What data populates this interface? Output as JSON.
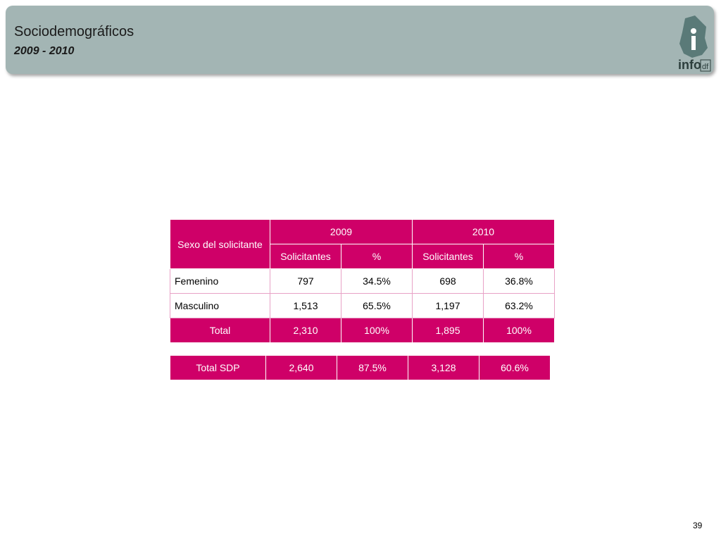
{
  "header": {
    "title": "Sociodemográficos",
    "subtitle": "2009 - 2010"
  },
  "logo": {
    "text": "info",
    "suffix": "df"
  },
  "table": {
    "header": {
      "group": "Sexo del solicitante",
      "years": [
        "2009",
        "2010"
      ],
      "columns": [
        "Solicitantes",
        "%",
        "Solicitantes",
        "%"
      ]
    },
    "rows": [
      [
        "Femenino",
        "797",
        "34.5%",
        "698",
        "36.8%"
      ],
      [
        "Masculino",
        "1,513",
        "65.5%",
        "1,197",
        "63.2%"
      ],
      [
        "Total",
        "2,310",
        "100%",
        "1,895",
        "100%"
      ]
    ]
  },
  "summary_table": {
    "rows": [
      [
        "Total SDP",
        "2,640",
        "87.5%",
        "3,128",
        "60.6%"
      ]
    ]
  },
  "page_number": "39"
}
